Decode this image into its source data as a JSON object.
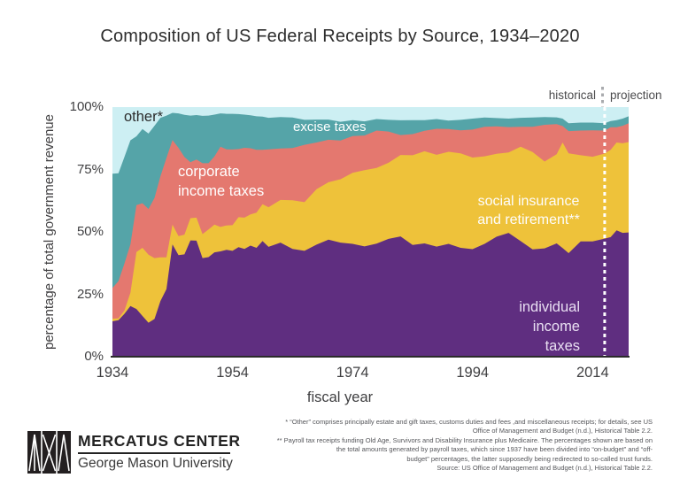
{
  "title": "Composition of US Federal Receipts by Source, 1934–2020",
  "chart_data": {
    "type": "area",
    "stacked": true,
    "title": "Composition of US Federal Receipts by Source, 1934–2020",
    "xlabel": "fiscal year",
    "ylabel": "percentage of total government revenue",
    "xlim": [
      1934,
      2020
    ],
    "ylim": [
      0,
      100
    ],
    "grid": false,
    "legend": "labels drawn inside areas",
    "x_ticks": [
      1934,
      1954,
      1974,
      1994,
      2014
    ],
    "y_ticks": [
      {
        "label": "100%",
        "value": 100
      },
      {
        "label": "75%",
        "value": 75
      },
      {
        "label": "50%",
        "value": 50
      },
      {
        "label": "25%",
        "value": 25
      },
      {
        "label": "0%",
        "value": 0
      }
    ],
    "divider_year": 2016,
    "divider_color_above": "#a9abae",
    "divider_color_inside": "#ffffff",
    "annotations": {
      "left": "historical",
      "right": "projection"
    },
    "x": [
      1934,
      1935,
      1936,
      1937,
      1938,
      1939,
      1940,
      1941,
      1942,
      1943,
      1944,
      1945,
      1946,
      1947,
      1948,
      1949,
      1950,
      1951,
      1952,
      1953,
      1954,
      1955,
      1956,
      1957,
      1958,
      1959,
      1960,
      1962,
      1964,
      1966,
      1968,
      1970,
      1972,
      1974,
      1976,
      1978,
      1980,
      1982,
      1984,
      1986,
      1988,
      1990,
      1992,
      1994,
      1996,
      1998,
      2000,
      2002,
      2004,
      2006,
      2008,
      2009,
      2010,
      2012,
      2014,
      2016,
      2017,
      2018,
      2019,
      2020
    ],
    "series": [
      {
        "key": "individual-income-taxes",
        "name": "individual income taxes",
        "color": "#5f2e80",
        "values": [
          14.2,
          14.6,
          17.2,
          20.3,
          19.1,
          16.3,
          13.6,
          15.1,
          22.3,
          27.1,
          45.0,
          40.7,
          41.0,
          46.6,
          46.5,
          39.5,
          39.9,
          41.8,
          42.2,
          42.8,
          42.4,
          43.9,
          43.2,
          44.5,
          43.6,
          46.3,
          44.0,
          45.7,
          43.2,
          42.4,
          44.9,
          46.9,
          45.7,
          45.2,
          44.2,
          45.3,
          47.2,
          48.2,
          44.8,
          45.4,
          44.1,
          45.2,
          43.6,
          43.1,
          45.2,
          48.1,
          49.6,
          46.3,
          43.0,
          43.4,
          45.4,
          43.5,
          41.5,
          46.2,
          46.2,
          47.3,
          47.9,
          50.6,
          49.6,
          49.8
        ]
      },
      {
        "key": "social-insurance-and-retirement",
        "name": "social insurance and retirement**",
        "color": "#eec23a",
        "values": [
          1.0,
          0.8,
          1.3,
          5.3,
          22.8,
          27.3,
          27.3,
          24.4,
          17.5,
          12.7,
          7.9,
          7.6,
          7.9,
          8.9,
          9.2,
          9.6,
          11.1,
          11.1,
          9.8,
          9.8,
          10.3,
          12.0,
          12.5,
          12.5,
          14.1,
          14.8,
          15.9,
          17.1,
          19.5,
          19.5,
          22.2,
          23.0,
          25.4,
          28.5,
          30.5,
          30.3,
          30.5,
          32.6,
          35.9,
          36.9,
          36.8,
          36.9,
          37.9,
          36.7,
          35.1,
          33.2,
          32.2,
          37.8,
          39.0,
          34.8,
          35.7,
          42.3,
          40.0,
          34.5,
          33.9,
          34.1,
          35.0,
          35.2,
          35.9,
          36.2
        ]
      },
      {
        "key": "corporate-income-taxes",
        "name": "corporate income taxes",
        "color": "#e4786f",
        "values": [
          12.3,
          14.9,
          18.9,
          19.4,
          18.8,
          17.9,
          18.3,
          24.1,
          32.5,
          39.8,
          33.9,
          35.4,
          31.1,
          22.4,
          23.3,
          28.4,
          26.5,
          27.3,
          32.1,
          30.5,
          30.3,
          27.3,
          28.0,
          26.5,
          25.2,
          21.8,
          23.2,
          20.6,
          20.9,
          23.0,
          18.7,
          17.0,
          15.5,
          14.7,
          13.9,
          15.0,
          12.5,
          8.0,
          8.5,
          8.2,
          10.4,
          9.1,
          9.2,
          11.2,
          11.8,
          11.0,
          10.2,
          8.0,
          10.1,
          14.7,
          12.1,
          6.6,
          8.9,
          9.9,
          10.6,
          9.2,
          9.0,
          6.1,
          7.0,
          7.5
        ]
      },
      {
        "key": "excise-taxes",
        "name": "excise taxes",
        "color": "#55a4a8",
        "values": [
          45.8,
          43.2,
          42.7,
          41.7,
          27.6,
          29.7,
          30.2,
          28.9,
          23.4,
          17.0,
          10.9,
          13.8,
          16.9,
          18.7,
          17.8,
          19.0,
          19.1,
          16.8,
          13.4,
          14.2,
          14.3,
          14.0,
          13.3,
          13.2,
          13.4,
          13.3,
          12.6,
          12.6,
          12.2,
          10.0,
          9.2,
          8.1,
          7.5,
          6.4,
          5.7,
          4.6,
          4.7,
          5.9,
          5.6,
          4.3,
          3.9,
          3.4,
          4.2,
          4.4,
          3.7,
          3.3,
          3.4,
          3.6,
          3.7,
          3.1,
          2.7,
          3.0,
          3.1,
          3.2,
          3.1,
          2.9,
          2.5,
          2.9,
          2.9,
          2.8
        ]
      },
      {
        "key": "other",
        "name": "other*",
        "color": "#cdeff3",
        "values": [
          26.7,
          26.5,
          19.9,
          13.3,
          11.7,
          8.8,
          10.6,
          7.5,
          4.3,
          3.4,
          2.3,
          2.5,
          3.1,
          3.4,
          3.2,
          3.5,
          3.4,
          3.0,
          2.5,
          2.7,
          2.7,
          2.8,
          3.0,
          3.3,
          3.7,
          3.8,
          4.3,
          4.0,
          4.2,
          5.1,
          5.0,
          5.0,
          5.9,
          5.2,
          5.7,
          4.8,
          5.1,
          5.3,
          5.2,
          5.2,
          4.8,
          5.4,
          5.1,
          4.6,
          4.2,
          4.4,
          4.6,
          4.3,
          4.2,
          4.0,
          4.1,
          4.6,
          6.5,
          6.2,
          6.2,
          6.5,
          5.6,
          5.2,
          4.6,
          3.7
        ]
      }
    ]
  },
  "area_labels": {
    "other": "other*",
    "excise": "excise taxes",
    "corporate": "corporate\nincome taxes",
    "social": "social insurance\nand retirement**",
    "individual": "individual\nincome\ntaxes"
  },
  "footer": {
    "logo_line1": "MERCATUS CENTER",
    "logo_line2": "George Mason University",
    "footnotes": [
      "* “Other” comprises principally estate and gift taxes, customs duties and fees ,and miscellaneous receipts; for details, see US",
      "Office of Management and Budget (n.d.), Historical Table 2.2.",
      "** Payroll tax receipts funding Old Age, Survivors and Disability Insurance plus Medicaire. The percentages shown are based on",
      "the total amounts generated by payroll taxes, which since 1937 have been divided into “on-budget” and “off-",
      "budget” percentages, the latter supposedly being redirected to so-called trust funds.",
      "Source: US Office of Management and Budget (n.d.), Historical Table 2.2."
    ]
  }
}
